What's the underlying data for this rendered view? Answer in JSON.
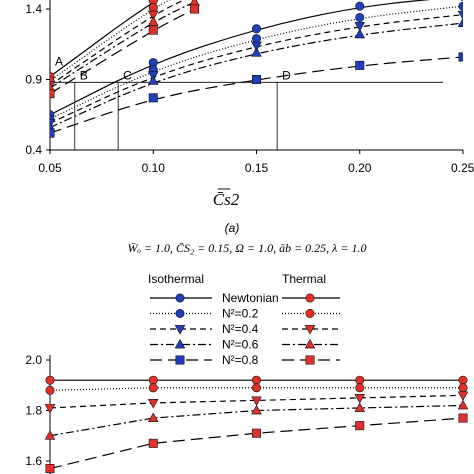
{
  "chart_data": [
    {
      "type": "line",
      "panel_label": "(a)",
      "xlabel": "C̄s2",
      "ylabel": "",
      "xlim": [
        0.05,
        0.25
      ],
      "ylim": [
        0.4,
        1.5
      ],
      "x_ticks": [
        "0.05",
        "0.10",
        "0.15",
        "0.20",
        "0.25"
      ],
      "y_ticks": [
        "0.4",
        "0.9",
        "1.4"
      ],
      "guide_level": 0.88,
      "guide_points": [
        {
          "label": "A",
          "x": 0.05
        },
        {
          "label": "B",
          "x": 0.062
        },
        {
          "label": "C",
          "x": 0.083
        },
        {
          "label": "D",
          "x": 0.16
        }
      ],
      "series": [
        {
          "group": "lower",
          "model": "Isothermal",
          "n2": "Newtonian",
          "x": [
            0.05,
            0.1,
            0.15,
            0.2,
            0.25
          ],
          "y": [
            0.65,
            1.02,
            1.26,
            1.42,
            1.49
          ]
        },
        {
          "group": "lower",
          "model": "Isothermal",
          "n2": "N²=0.2",
          "x": [
            0.05,
            0.1,
            0.15,
            0.2,
            0.25
          ],
          "y": [
            0.62,
            0.97,
            1.19,
            1.34,
            1.42
          ]
        },
        {
          "group": "lower",
          "model": "Isothermal",
          "n2": "N²=0.4",
          "x": [
            0.05,
            0.1,
            0.15,
            0.2,
            0.25
          ],
          "y": [
            0.59,
            0.93,
            1.14,
            1.28,
            1.36
          ]
        },
        {
          "group": "lower",
          "model": "Isothermal",
          "n2": "N²=0.6",
          "x": [
            0.05,
            0.1,
            0.15,
            0.2,
            0.25
          ],
          "y": [
            0.56,
            0.89,
            1.09,
            1.22,
            1.3
          ]
        },
        {
          "group": "lower",
          "model": "Isothermal",
          "n2": "N²=0.8",
          "x": [
            0.05,
            0.1,
            0.15,
            0.2,
            0.25
          ],
          "y": [
            0.52,
            0.77,
            0.9,
            1.0,
            1.06
          ]
        },
        {
          "group": "upper",
          "model": "Thermal",
          "n2": "Newtonian",
          "x": [
            0.05,
            0.1,
            0.12
          ],
          "y": [
            0.92,
            1.46,
            1.6
          ]
        },
        {
          "group": "upper",
          "model": "Thermal",
          "n2": "N²=0.2",
          "x": [
            0.05,
            0.1,
            0.12
          ],
          "y": [
            0.89,
            1.41,
            1.55
          ]
        },
        {
          "group": "upper",
          "model": "Thermal",
          "n2": "N²=0.4",
          "x": [
            0.05,
            0.1,
            0.12
          ],
          "y": [
            0.86,
            1.36,
            1.5
          ]
        },
        {
          "group": "upper",
          "model": "Thermal",
          "n2": "N²=0.6",
          "x": [
            0.05,
            0.1,
            0.12
          ],
          "y": [
            0.84,
            1.31,
            1.45
          ]
        },
        {
          "group": "upper",
          "model": "Thermal",
          "n2": "N²=0.8",
          "x": [
            0.05,
            0.1,
            0.12
          ],
          "y": [
            0.8,
            1.25,
            1.4
          ]
        }
      ]
    },
    {
      "type": "line",
      "xlim": [
        0.05,
        0.25
      ],
      "ylim": [
        1.5,
        2.0
      ],
      "y_ticks": [
        "1.6",
        "1.8",
        "2.0"
      ],
      "series": [
        {
          "model": "Isothermal",
          "n2": "Newtonian",
          "x": [
            0.05,
            0.1,
            0.15,
            0.2,
            0.25
          ],
          "y": [
            1.92,
            1.92,
            1.92,
            1.92,
            1.92
          ]
        },
        {
          "model": "Isothermal",
          "n2": "N²=0.2",
          "x": [
            0.05,
            0.1,
            0.15,
            0.2,
            0.25
          ],
          "y": [
            1.88,
            1.89,
            1.89,
            1.89,
            1.89
          ]
        },
        {
          "model": "Isothermal",
          "n2": "N²=0.4",
          "x": [
            0.05,
            0.1,
            0.15,
            0.2,
            0.25
          ],
          "y": [
            1.81,
            1.83,
            1.84,
            1.85,
            1.86
          ]
        },
        {
          "model": "Isothermal",
          "n2": "N²=0.6",
          "x": [
            0.05,
            0.1,
            0.15,
            0.2,
            0.25
          ],
          "y": [
            1.7,
            1.77,
            1.8,
            1.81,
            1.82
          ]
        },
        {
          "model": "Isothermal",
          "n2": "N²=0.8",
          "x": [
            0.05,
            0.1,
            0.15,
            0.2,
            0.25
          ],
          "y": [
            1.57,
            1.67,
            1.71,
            1.74,
            1.77
          ]
        },
        {
          "model": "Thermal",
          "n2": "Newtonian",
          "x": [
            0.05,
            0.1,
            0.15,
            0.2,
            0.25
          ],
          "y": [
            1.92,
            1.92,
            1.92,
            1.92,
            1.92
          ]
        },
        {
          "model": "Thermal",
          "n2": "N²=0.2",
          "x": [
            0.05,
            0.1,
            0.15,
            0.2,
            0.25
          ],
          "y": [
            1.88,
            1.89,
            1.89,
            1.89,
            1.89
          ]
        },
        {
          "model": "Thermal",
          "n2": "N²=0.4",
          "x": [
            0.05,
            0.1,
            0.15,
            0.2,
            0.25
          ],
          "y": [
            1.81,
            1.83,
            1.84,
            1.85,
            1.86
          ]
        },
        {
          "model": "Thermal",
          "n2": "N²=0.6",
          "x": [
            0.05,
            0.1,
            0.15,
            0.2,
            0.25
          ],
          "y": [
            1.7,
            1.77,
            1.8,
            1.81,
            1.82
          ]
        },
        {
          "model": "Thermal",
          "n2": "N²=0.8",
          "x": [
            0.05,
            0.1,
            0.15,
            0.2,
            0.25
          ],
          "y": [
            1.57,
            1.67,
            1.71,
            1.74,
            1.77
          ]
        }
      ]
    }
  ],
  "parameters_line": "W̄ₒ = 1.0, C̄S₂ = 0.15, Ω = 1.0, āb = 0.25, λ = 1.0",
  "legend": {
    "headers": [
      "Isothermal",
      "Thermal"
    ],
    "entries": [
      "Newtonian",
      "N²=0.2",
      "N²=0.4",
      "N²=0.6",
      "N²=0.8"
    ]
  },
  "colors": {
    "isothermal_marker": "#1f3fbf",
    "thermal_marker": "#e0302a",
    "line": "#000000"
  },
  "styles": {
    "line_dash": [
      "",
      "1,2",
      "6,4",
      "8,3,2,3",
      "12,6"
    ],
    "marker_shapes": [
      "circle",
      "circle",
      "triangle-down",
      "triangle-up",
      "square"
    ]
  }
}
